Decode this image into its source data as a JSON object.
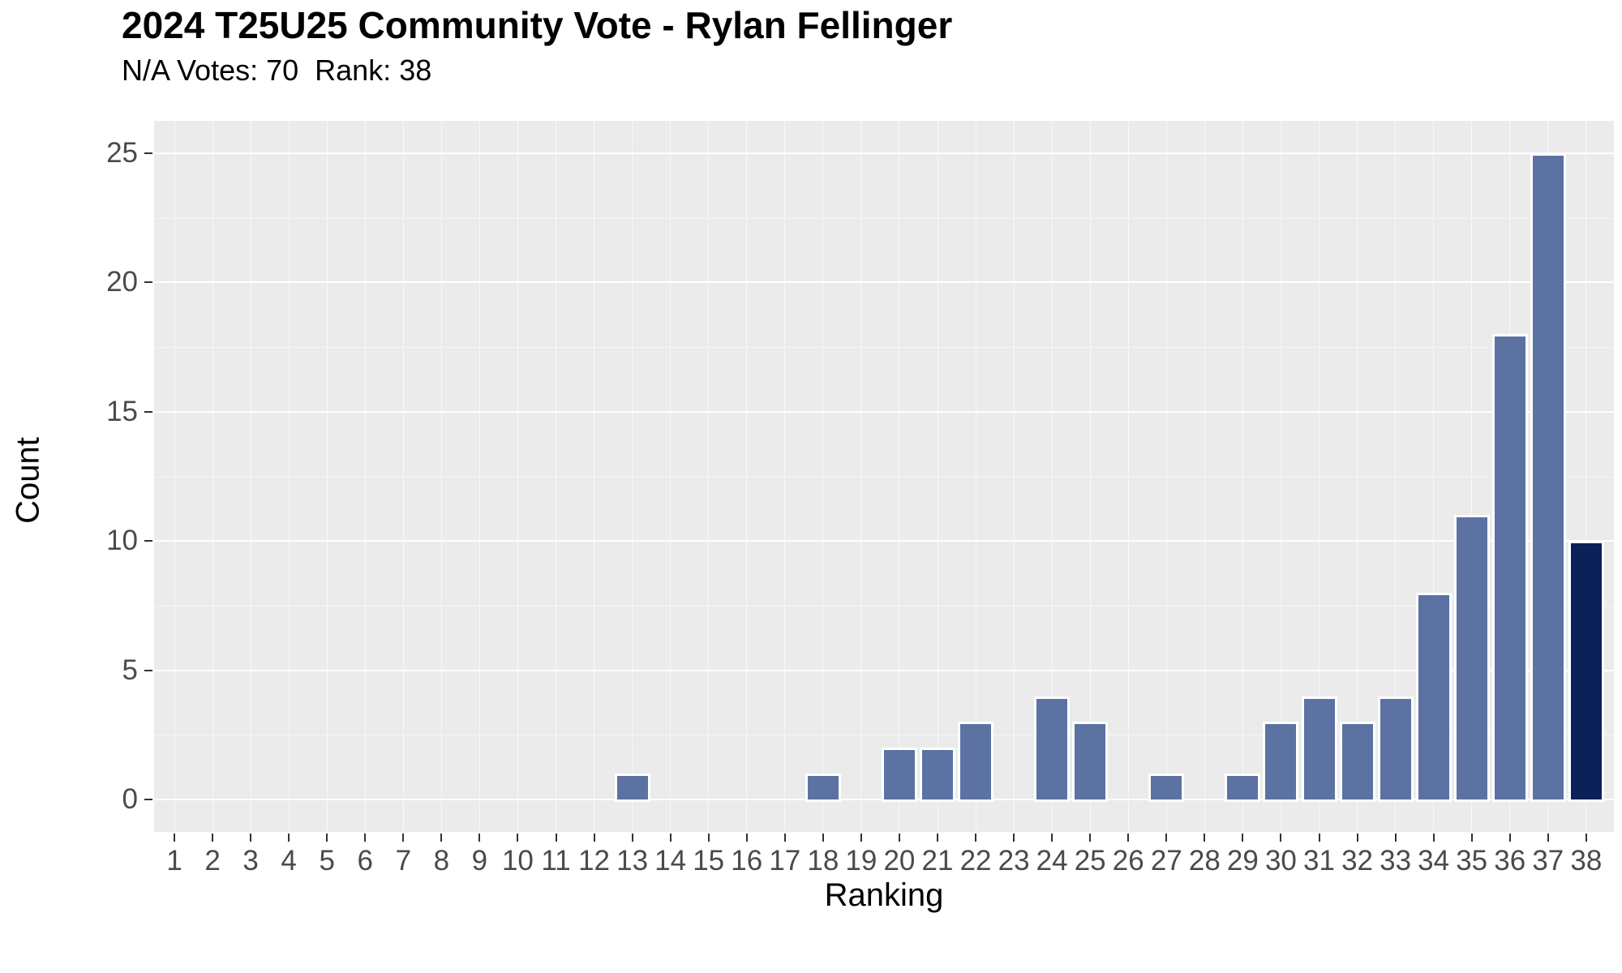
{
  "chart_data": {
    "type": "bar",
    "title": "2024 T25U25 Community Vote - Rylan Fellinger",
    "subtitle": "N/A Votes: 70  Rank: 38",
    "xlabel": "Ranking",
    "ylabel": "Count",
    "categories": [
      1,
      2,
      3,
      4,
      5,
      6,
      7,
      8,
      9,
      10,
      11,
      12,
      13,
      14,
      15,
      16,
      17,
      18,
      19,
      20,
      21,
      22,
      23,
      24,
      25,
      26,
      27,
      28,
      29,
      30,
      31,
      32,
      33,
      34,
      35,
      36,
      37,
      38
    ],
    "values": [
      0,
      0,
      0,
      0,
      0,
      0,
      0,
      0,
      0,
      0,
      0,
      0,
      1,
      0,
      0,
      0,
      0,
      1,
      0,
      2,
      2,
      3,
      0,
      4,
      3,
      0,
      1,
      0,
      1,
      3,
      4,
      3,
      4,
      8,
      11,
      18,
      25,
      10
    ],
    "ylim": [
      0,
      25
    ],
    "yticks": [
      0,
      5,
      10,
      15,
      20,
      25
    ],
    "yticks_minor": [
      2.5,
      7.5,
      12.5,
      17.5,
      22.5
    ],
    "grid": true,
    "legend": "none",
    "bar_color": "#5B72A3",
    "highlight_category": 38,
    "highlight_color": "#0C2157",
    "panel_bg": "#EBEBEB",
    "gridline_color": "#FFFFFF",
    "tick_color": "#333333",
    "tick_label_color": "#4A4A4A",
    "na_votes": 70,
    "rank": 38
  }
}
